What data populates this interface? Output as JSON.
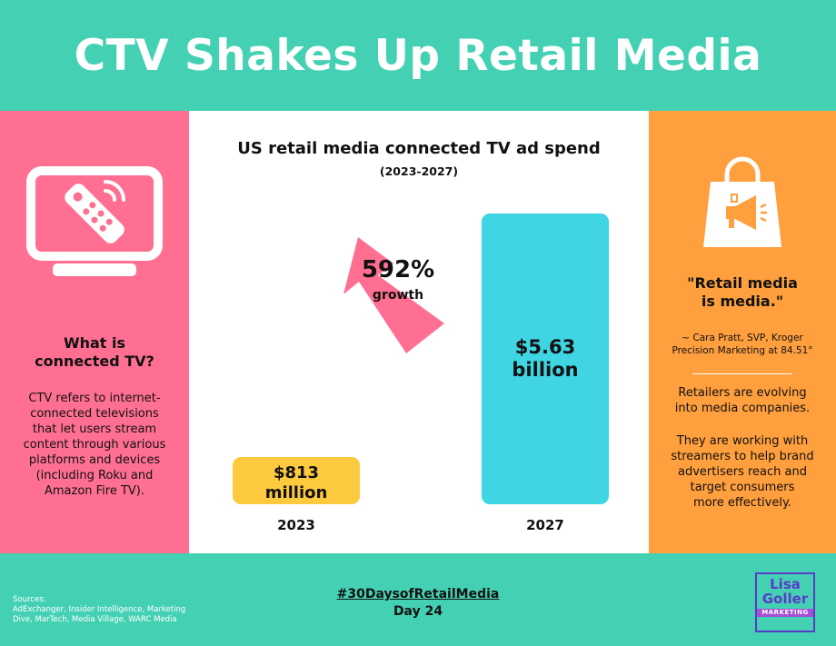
{
  "header": {
    "title": "CTV Shakes Up Retail Media"
  },
  "left_panel": {
    "icon": "tv-remote-icon",
    "heading": "What is\nconnected TV?",
    "body": "CTV refers to internet-\nconnected televisions\nthat let users stream\ncontent through various\nplatforms and devices\n(including Roku and\nAmazon Fire TV)."
  },
  "chart_data": {
    "type": "bar",
    "title": "US retail media connected TV ad spend",
    "subtitle": "(2023-2027)",
    "categories": [
      "2023",
      "2027"
    ],
    "values": [
      0.813,
      5.63
    ],
    "value_labels": [
      "$813\nmillion",
      "$5.63\nbillion"
    ],
    "bar_colors": [
      "#fdc93e",
      "#3fd5e3"
    ],
    "annotation": {
      "value": "592%",
      "label": "growth",
      "arrow_color": "#ff6f91",
      "arrow_icon": "growth-arrow-icon"
    }
  },
  "right_panel": {
    "icon": "shopping-bag-megaphone-icon",
    "quote": "\"Retail media\nis media.\"",
    "attribution": "~ Cara Pratt, SVP, Kroger\nPrecision Marketing at 84.51°",
    "paragraph1": "Retailers are evolving\ninto media companies.",
    "paragraph2": "They are working with\nstreamers to help brand\nadvertisers reach and\ntarget consumers\nmore effectively."
  },
  "footer": {
    "sources_label": "Sources:",
    "sources": "AdExchanger, Insider Intelligence, Marketing Dive, MarTech, Media Village, WARC Media",
    "hashtag": "#30DaysofRetailMedia",
    "day": "Day 24",
    "logo": {
      "line1": "Lisa",
      "line2": "Goller",
      "line3": "MARKETING"
    }
  },
  "colors": {
    "teal": "#44d1b3",
    "pink": "#ff6f91",
    "orange": "#ff9f3e",
    "yellow": "#fdc93e",
    "cyan": "#3fd5e3",
    "logo_purple": "#5b3ac8"
  }
}
